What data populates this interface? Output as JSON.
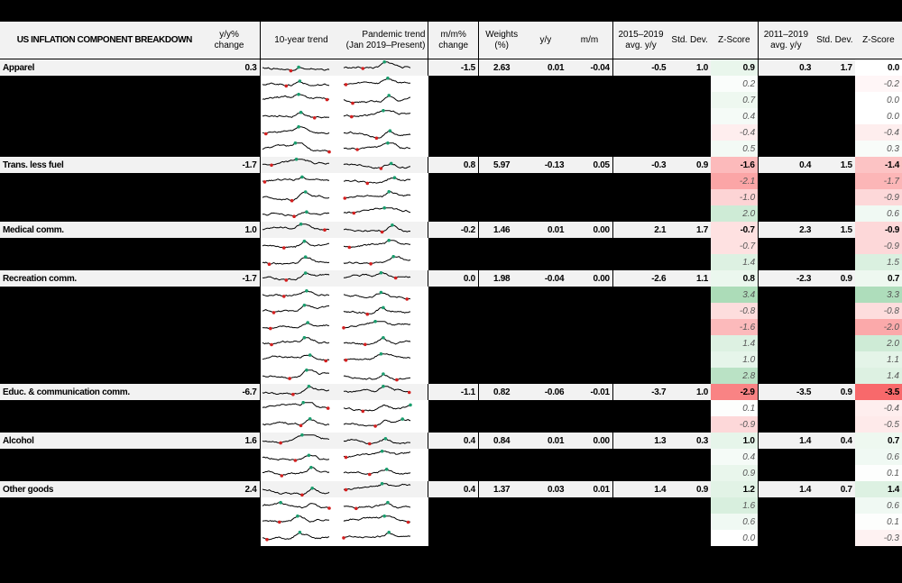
{
  "table": {
    "title": "US INFLATION COMPONENT BREAKDOWN",
    "headers": {
      "yy_change": [
        "y/y%",
        "change"
      ],
      "trend10": "10-year trend",
      "pandemic": [
        "Pandemic trend",
        "(Jan 2019–Present)"
      ],
      "mm_change": [
        "m/m%",
        "change"
      ],
      "weights": [
        "Weights",
        "(%)"
      ],
      "yy": "y/y",
      "mm": "m/m",
      "avg1519": [
        "2015–2019",
        "avg. y/y"
      ],
      "std1": "Std. Dev.",
      "z1": "Z-Score",
      "avg1119": [
        "2011–2019",
        "avg. y/y"
      ],
      "std2": "Std. Dev.",
      "z2": "Z-Score"
    },
    "groups": [
      {
        "label": "Apparel",
        "yy_change": "0.3",
        "mm_change": "-1.5",
        "weights": "2.63",
        "yy": "0.01",
        "mm": "-0.04",
        "avg1519": "-0.5",
        "std1": "1.0",
        "z1": "0.9",
        "avg1119": "0.3",
        "std2": "1.7",
        "z2": "0.0",
        "subs": [
          {
            "z1": "0.2",
            "z2": "-0.2"
          },
          {
            "z1": "0.7",
            "z2": "0.0"
          },
          {
            "z1": "0.4",
            "z2": "0.0"
          },
          {
            "z1": "-0.4",
            "z2": "-0.4"
          },
          {
            "z1": "0.5",
            "z2": "0.3"
          }
        ]
      },
      {
        "label": "Trans. less fuel",
        "yy_change": "-1.7",
        "mm_change": "0.8",
        "weights": "5.97",
        "yy": "-0.13",
        "mm": "0.05",
        "avg1519": "-0.3",
        "std1": "0.9",
        "z1": "-1.6",
        "avg1119": "0.4",
        "std2": "1.5",
        "z2": "-1.4",
        "subs": [
          {
            "z1": "-2.1",
            "z2": "-1.7"
          },
          {
            "z1": "-1.0",
            "z2": "-0.9"
          },
          {
            "z1": "2.0",
            "z2": "0.6"
          }
        ]
      },
      {
        "label": "Medical comm.",
        "yy_change": "1.0",
        "mm_change": "-0.2",
        "weights": "1.46",
        "yy": "0.01",
        "mm": "0.00",
        "avg1519": "2.1",
        "std1": "1.7",
        "z1": "-0.7",
        "avg1119": "2.3",
        "std2": "1.5",
        "z2": "-0.9",
        "subs": [
          {
            "z1": "-0.7",
            "z2": "-0.9"
          },
          {
            "z1": "1.4",
            "z2": "1.5"
          }
        ]
      },
      {
        "label": "Recreation comm.",
        "yy_change": "-1.7",
        "mm_change": "0.0",
        "weights": "1.98",
        "yy": "-0.04",
        "mm": "0.00",
        "avg1519": "-2.6",
        "std1": "1.1",
        "z1": "0.8",
        "avg1119": "-2.3",
        "std2": "0.9",
        "z2": "0.7",
        "subs": [
          {
            "z1": "3.4",
            "z2": "3.3"
          },
          {
            "z1": "-0.8",
            "z2": "-0.8"
          },
          {
            "z1": "-1.6",
            "z2": "-2.0"
          },
          {
            "z1": "1.4",
            "z2": "2.0"
          },
          {
            "z1": "1.0",
            "z2": "1.1"
          },
          {
            "z1": "2.8",
            "z2": "1.4"
          }
        ]
      },
      {
        "label": "Educ. & communication comm.",
        "yy_change": "-6.7",
        "mm_change": "-1.1",
        "weights": "0.82",
        "yy": "-0.06",
        "mm": "-0.01",
        "avg1519": "-3.7",
        "std1": "1.0",
        "z1": "-2.9",
        "avg1119": "-3.5",
        "std2": "0.9",
        "z2": "-3.5",
        "subs": [
          {
            "z1": "0.1",
            "z2": "-0.4"
          },
          {
            "z1": "-0.9",
            "z2": "-0.5"
          }
        ]
      },
      {
        "label": "Alcohol",
        "yy_change": "1.6",
        "mm_change": "0.4",
        "weights": "0.84",
        "yy": "0.01",
        "mm": "0.00",
        "avg1519": "1.3",
        "std1": "0.3",
        "z1": "1.0",
        "avg1119": "1.4",
        "std2": "0.4",
        "z2": "0.7",
        "subs": [
          {
            "z1": "0.4",
            "z2": "0.6"
          },
          {
            "z1": "0.9",
            "z2": "0.1"
          }
        ]
      },
      {
        "label": "Other goods",
        "yy_change": "2.4",
        "mm_change": "0.4",
        "weights": "1.37",
        "yy": "0.03",
        "mm": "0.01",
        "avg1519": "1.4",
        "std1": "0.9",
        "z1": "1.2",
        "avg1119": "1.4",
        "std2": "0.7",
        "z2": "1.4",
        "subs": [
          {
            "z1": "1.6",
            "z2": "0.6"
          },
          {
            "z1": "0.6",
            "z2": "0.1"
          },
          {
            "z1": "0.0",
            "z2": "-0.3"
          }
        ]
      }
    ]
  },
  "colors": {
    "sparkline": "#000000",
    "high_marker": "#1a9e6e",
    "low_marker": "#d42020",
    "neg_zscore": "#f8696b",
    "pos_zscore": "#63be7b",
    "header_bg": "#f2f2f2"
  }
}
